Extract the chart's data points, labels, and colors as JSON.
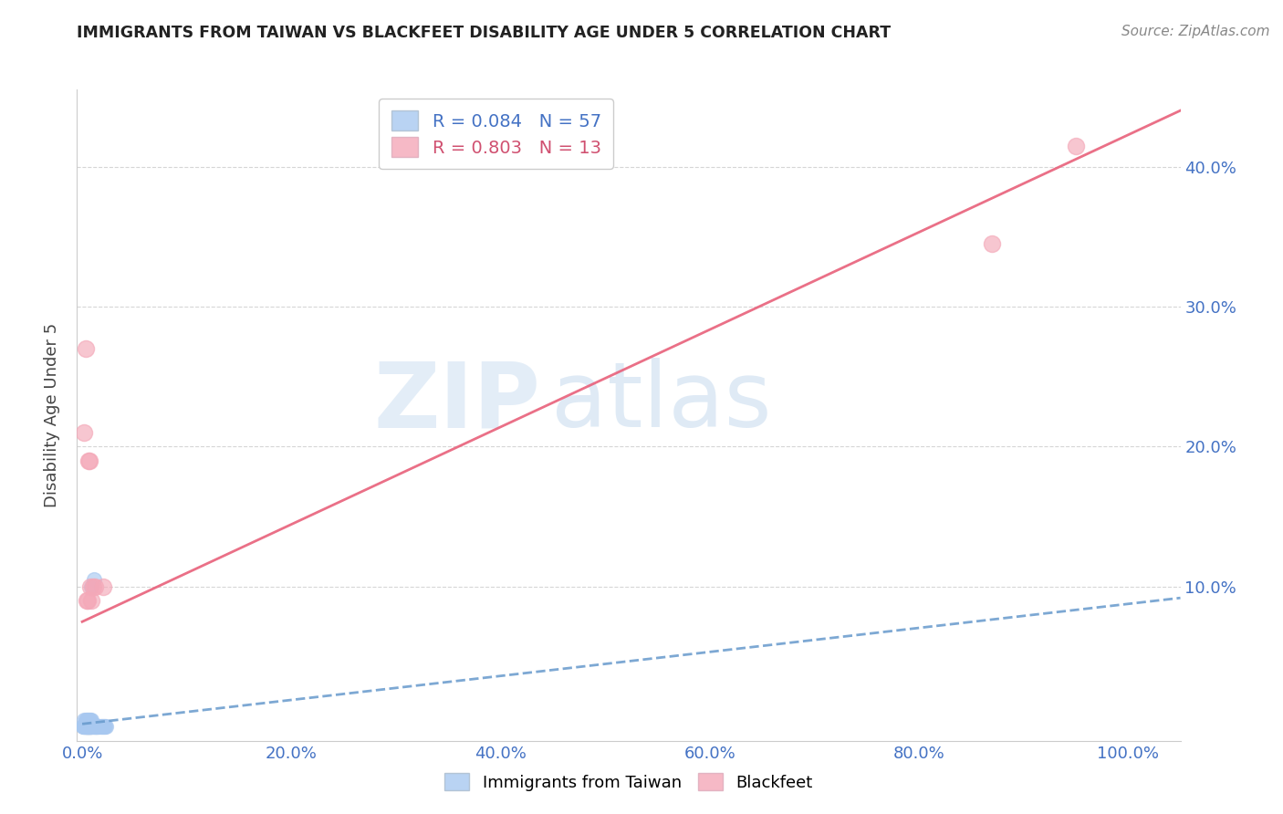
{
  "title": "IMMIGRANTS FROM TAIWAN VS BLACKFEET DISABILITY AGE UNDER 5 CORRELATION CHART",
  "source": "Source: ZipAtlas.com",
  "ylabel": "Disability Age Under 5",
  "x_tick_labels": [
    "0.0%",
    "20.0%",
    "40.0%",
    "60.0%",
    "80.0%",
    "100.0%"
  ],
  "x_tick_vals": [
    0.0,
    0.2,
    0.4,
    0.6,
    0.8,
    1.0
  ],
  "y_tick_labels": [
    "10.0%",
    "20.0%",
    "30.0%",
    "40.0%"
  ],
  "y_tick_vals": [
    0.1,
    0.2,
    0.3,
    0.4
  ],
  "xlim": [
    -0.005,
    1.05
  ],
  "ylim": [
    -0.01,
    0.455
  ],
  "legend1_label": "R = 0.084   N = 57",
  "legend2_label": "R = 0.803   N = 13",
  "taiwan_color": "#A8C8F0",
  "blackfeet_color": "#F4A8B8",
  "taiwan_line_color": "#6699CC",
  "blackfeet_line_color": "#E8607A",
  "watermark_zip": "ZIP",
  "watermark_atlas": "atlas",
  "taiwan_x": [
    0.001,
    0.002,
    0.003,
    0.004,
    0.005,
    0.006,
    0.007,
    0.008,
    0.009,
    0.01,
    0.011,
    0.012,
    0.013,
    0.014,
    0.015,
    0.016,
    0.017,
    0.018,
    0.019,
    0.02,
    0.021,
    0.022,
    0.023,
    0.002,
    0.003,
    0.004,
    0.005,
    0.006,
    0.007,
    0.008,
    0.009,
    0.003,
    0.005,
    0.007,
    0.009,
    0.011,
    0.013,
    0.015,
    0.002,
    0.004,
    0.006,
    0.008,
    0.003,
    0.005,
    0.007,
    0.009,
    0.011,
    0.013,
    0.001,
    0.002,
    0.003,
    0.004,
    0.005,
    0.006,
    0.007,
    0.008,
    0.009
  ],
  "taiwan_y": [
    0.0,
    0.0,
    0.0,
    0.0,
    0.0,
    0.0,
    0.0,
    0.0,
    0.0,
    0.0,
    0.0,
    0.0,
    0.0,
    0.0,
    0.0,
    0.0,
    0.0,
    0.0,
    0.0,
    0.0,
    0.0,
    0.0,
    0.0,
    0.005,
    0.005,
    0.005,
    0.005,
    0.005,
    0.005,
    0.005,
    0.005,
    0.0,
    0.0,
    0.0,
    0.0,
    0.0,
    0.0,
    0.0,
    0.0,
    0.0,
    0.0,
    0.0,
    0.0,
    0.0,
    0.0,
    0.1,
    0.105,
    0.0,
    0.0,
    0.0,
    0.0,
    0.0,
    0.0,
    0.0,
    0.0,
    0.0,
    0.0
  ],
  "blackfeet_x": [
    0.002,
    0.003,
    0.004,
    0.005,
    0.006,
    0.007,
    0.008,
    0.009,
    0.01,
    0.012,
    0.02,
    0.87,
    0.95
  ],
  "blackfeet_y": [
    0.21,
    0.27,
    0.09,
    0.09,
    0.19,
    0.19,
    0.1,
    0.09,
    0.1,
    0.1,
    0.1,
    0.345,
    0.415
  ],
  "taiwan_trend_x": [
    0.0,
    1.05
  ],
  "taiwan_trend_y": [
    0.002,
    0.092
  ],
  "blackfeet_trend_x": [
    0.0,
    1.05
  ],
  "blackfeet_trend_y": [
    0.075,
    0.44
  ]
}
